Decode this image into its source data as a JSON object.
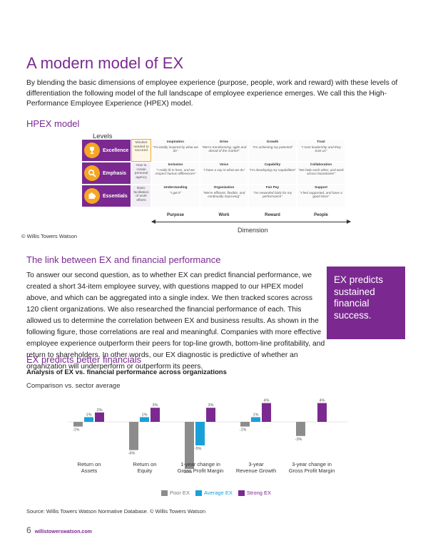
{
  "page": {
    "title": "A modern model of EX",
    "intro": "By blending the basic dimensions of employee experience (purpose, people, work and reward) with these levels of differentiation the following model of the full landscape of employee experience emerges. We call this the High-Performance Employee Experience (HPEX) model.",
    "hpex_heading": "HPEX model",
    "levels_label": "Levels",
    "dimension_label": "Dimension",
    "copyright1": "© Willis Towers Watson",
    "link_heading": "The link between EX and financial performance",
    "body2": "To answer our second question, as to whether EX can predict financial performance, we created a short 34-item employee survey, with questions mapped to our HPEX model above, and which can be aggregated into a single index. We then tracked scores across 120 client organizations. We also researched the financial performance of each. This allowed us to determine the correlation between EX and business results. As shown in the following figure, those correlations are real and meaningful. Companies with more effective employee experience outperform their peers for top-line growth, bottom-line profitability, and return to shareholders. In other words, our EX diagnostic is predictive of whether an organization will underperform or outperform its peers.",
    "callout": "EX predicts sustained financial success.",
    "predicts_heading": "EX predicts better financials",
    "chart_title": "Analysis of EX vs. financial performance across organizations",
    "chart_subtitle": "Comparison vs. sector average",
    "source": "Source: Willis Towers Watson Normative Database. © Willis Towers Watson",
    "page_number": "6",
    "url": "willistowerswatson.com"
  },
  "hpex": {
    "dimensions": [
      "Purpose",
      "Work",
      "Reward",
      "People"
    ],
    "rows": [
      {
        "label": "Excellence",
        "icon": "trophy-icon",
        "desc": "Mindset needed to succeed",
        "highlight": true,
        "cells": [
          {
            "head": "Inspiration",
            "quote": "\"I'm totally inspired by what we do\""
          },
          {
            "head": "Drive",
            "quote": "\"We're transforming, agile and ahead of the market\""
          },
          {
            "head": "Growth",
            "quote": "\"I'm achieving my potential\""
          },
          {
            "head": "Trust",
            "quote": "\"I trust leadership and they trust us\""
          }
        ]
      },
      {
        "label": "Emphasis",
        "icon": "magnifier-icon",
        "desc": "How to create personal agency",
        "highlight": false,
        "cells": [
          {
            "head": "Inclusion",
            "quote": "\"I really fit in here, and we respect human differences\""
          },
          {
            "head": "Voice",
            "quote": "\"I have a say in what we do\""
          },
          {
            "head": "Capability",
            "quote": "\"I'm developing my capabilities\""
          },
          {
            "head": "Collaboration",
            "quote": "\"We help each other, and work across boundaries\""
          }
        ]
      },
      {
        "label": "Essentials",
        "icon": "puzzle-icon",
        "desc": "Basic facilitation of work efforts",
        "highlight": false,
        "cells": [
          {
            "head": "Understanding",
            "quote": "\"I get it\""
          },
          {
            "head": "Organization",
            "quote": "\"We're efficient, flexible, and continually improving\""
          },
          {
            "head": "Fair Pay",
            "quote": "\"I'm rewarded fairly for my performance\""
          },
          {
            "head": "Support",
            "quote": "\"I feel supported, and have a good boss\""
          }
        ]
      }
    ]
  },
  "chart_data": {
    "type": "bar",
    "categories": [
      "Return on\nAssets",
      "Return on\nEquity",
      "1-year change in\nGross Profit Margin",
      "3-year\nRevenue Growth",
      "3-year change in\nGross Profit Margin"
    ],
    "series": [
      {
        "name": "Poor EX",
        "color": "#8c8c8c",
        "values": [
          -1,
          -6,
          -10,
          -1,
          -3
        ],
        "labels": [
          "-1%",
          "-6%",
          "-10%",
          "-1%",
          "-3%"
        ]
      },
      {
        "name": "Average EX",
        "color": "#1aa0d8",
        "values": [
          1,
          1,
          -5,
          1,
          0
        ],
        "labels": [
          "1%",
          "1%",
          "-5%",
          "1%",
          ""
        ]
      },
      {
        "name": "Strong EX",
        "color": "#7b2990",
        "values": [
          2,
          3,
          3,
          4,
          4
        ],
        "labels": [
          "2%",
          "3%",
          "3%",
          "4%",
          "4%"
        ]
      }
    ],
    "ylim": [
      -11,
      5
    ]
  }
}
